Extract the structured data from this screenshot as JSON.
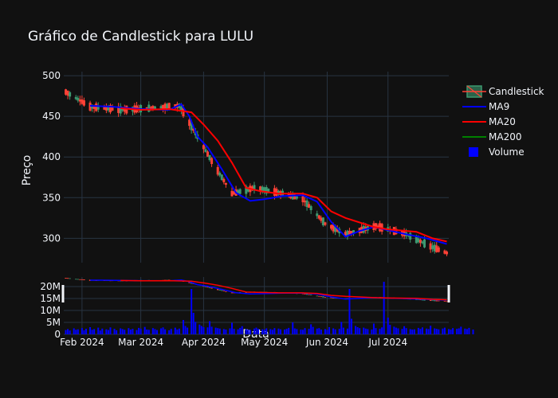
{
  "chart_data": {
    "type": "candlestick",
    "title": "Gráfico de Candlestick para LULU",
    "ylabel": "Preço",
    "xlabel": "Data",
    "ylim": [
      270,
      505
    ],
    "yticks": [
      300,
      350,
      400,
      450,
      500
    ],
    "volume_ylim": [
      0,
      24000000
    ],
    "volume_ticks": [
      0,
      5000000,
      10000000,
      15000000,
      20000000
    ],
    "volume_tick_labels": [
      "0",
      "5M",
      "10M",
      "15M",
      "20M"
    ],
    "xrange": [
      "2024-01-23",
      "2024-07-31"
    ],
    "xticks": [
      "2024-02-01",
      "2024-03-01",
      "2024-04-01",
      "2024-05-01",
      "2024-06-01",
      "2024-07-01"
    ],
    "xtick_labels": [
      "Feb 2024",
      "Mar 2024",
      "Apr 2024",
      "May 2024",
      "Jun 2024",
      "Jul 2024"
    ],
    "colors": {
      "background": "#111111",
      "grid": "#283442",
      "increasing": "#3d9970",
      "decreasing": "#ff4136",
      "ma9": "#0000ff",
      "ma20": "#ff0000",
      "ma200": "#008000",
      "volume": "#0000ff"
    },
    "legend": {
      "position": "top-right",
      "items": [
        {
          "name": "Candlestick",
          "kind": "candle"
        },
        {
          "name": "MA9",
          "kind": "line",
          "color": "#0000ff"
        },
        {
          "name": "MA20",
          "kind": "line",
          "color": "#ff0000"
        },
        {
          "name": "MA200",
          "kind": "line",
          "color": "#008000"
        },
        {
          "name": "Volume",
          "kind": "bar",
          "color": "#0000ff"
        }
      ]
    },
    "trend": {
      "dates": [
        "2024-01-24",
        "2024-02-05",
        "2024-02-20",
        "2024-03-05",
        "2024-03-20",
        "2024-03-22",
        "2024-04-05",
        "2024-04-15",
        "2024-04-26",
        "2024-05-10",
        "2024-05-20",
        "2024-05-31",
        "2024-06-10",
        "2024-06-25",
        "2024-07-10",
        "2024-07-22",
        "2024-07-30"
      ],
      "prices": [
        480,
        462,
        458,
        460,
        463,
        455,
        395,
        355,
        362,
        355,
        348,
        318,
        305,
        315,
        305,
        290,
        282
      ]
    },
    "ma9": {
      "dates": [
        "2024-02-05",
        "2024-02-15",
        "2024-03-01",
        "2024-03-15",
        "2024-03-21",
        "2024-03-25",
        "2024-03-29",
        "2024-04-03",
        "2024-04-10",
        "2024-04-17",
        "2024-04-24",
        "2024-05-01",
        "2024-05-10",
        "2024-05-20",
        "2024-05-27",
        "2024-06-03",
        "2024-06-10",
        "2024-06-17",
        "2024-06-24",
        "2024-07-01",
        "2024-07-10",
        "2024-07-20",
        "2024-07-30"
      ],
      "values": [
        463,
        462,
        459,
        458,
        465,
        450,
        425,
        412,
        385,
        356,
        346,
        348,
        352,
        353,
        345,
        320,
        302,
        309,
        314,
        310,
        305,
        300,
        293
      ]
    },
    "ma20": {
      "dates": [
        "2024-02-20",
        "2024-03-01",
        "2024-03-15",
        "2024-03-26",
        "2024-04-01",
        "2024-04-08",
        "2024-04-15",
        "2024-04-22",
        "2024-04-29",
        "2024-05-08",
        "2024-05-20",
        "2024-05-27",
        "2024-06-03",
        "2024-06-10",
        "2024-06-24",
        "2024-07-01",
        "2024-07-15",
        "2024-07-23",
        "2024-07-30"
      ],
      "values": [
        460,
        458,
        459,
        455,
        440,
        420,
        393,
        362,
        358,
        355,
        355,
        350,
        333,
        325,
        314,
        311,
        308,
        300,
        296
      ]
    },
    "volume_series": {
      "start": "2024-01-24",
      "values_m": [
        1.8,
        2.2,
        1.6,
        2.5,
        1.9,
        2.1,
        2.6,
        1.7,
        2.3,
        3.0,
        1.9,
        2.2,
        2.8,
        1.6,
        2.4,
        2.1,
        1.8,
        2.9,
        2.3,
        1.7,
        2.5,
        2.2,
        1.9,
        2.6,
        2.0,
        2.3,
        1.8,
        2.7,
        2.4,
        3.1,
        2.0,
        1.9,
        2.6,
        2.2,
        1.8,
        2.5,
        2.9,
        2.1,
        1.7,
        2.3,
        2.8,
        2.0,
        2.4,
        6.0,
        3.5,
        2.8,
        19.0,
        9.0,
        5.2,
        4.1,
        3.5,
        3.0,
        2.9,
        5.5,
        3.2,
        2.8,
        2.6,
        2.4,
        2.2,
        2.0,
        2.5,
        4.8,
        2.3,
        2.1,
        2.7,
        3.4,
        2.2,
        2.0,
        1.9,
        2.4,
        2.8,
        2.3,
        2.1,
        2.0,
        2.5,
        2.2,
        1.9,
        2.6,
        2.4,
        2.1,
        2.0,
        2.3,
        2.7,
        5.0,
        2.5,
        2.2,
        2.0,
        1.9,
        2.6,
        2.3,
        4.2,
        3.1,
        2.4,
        2.6,
        2.0,
        2.2,
        1.9,
        3.0,
        2.5,
        2.1,
        2.3,
        5.2,
        2.8,
        2.4,
        19.0,
        6.5,
        3.5,
        3.0,
        2.6,
        2.8,
        2.4,
        2.2,
        2.0,
        4.5,
        2.6,
        2.3,
        2.9,
        22.0,
        7.0,
        4.0,
        3.2,
        2.8,
        2.5,
        2.3,
        3.4,
        2.6,
        2.2,
        2.0,
        2.1,
        2.7,
        2.3,
        2.9,
        2.4,
        2.2,
        3.6,
        2.5,
        2.3,
        2.1,
        2.4,
        2.8,
        2.2,
        2.0,
        2.6,
        2.3,
        2.5,
        3.2,
        2.4,
        2.2,
        2.7,
        2.0
      ]
    }
  }
}
